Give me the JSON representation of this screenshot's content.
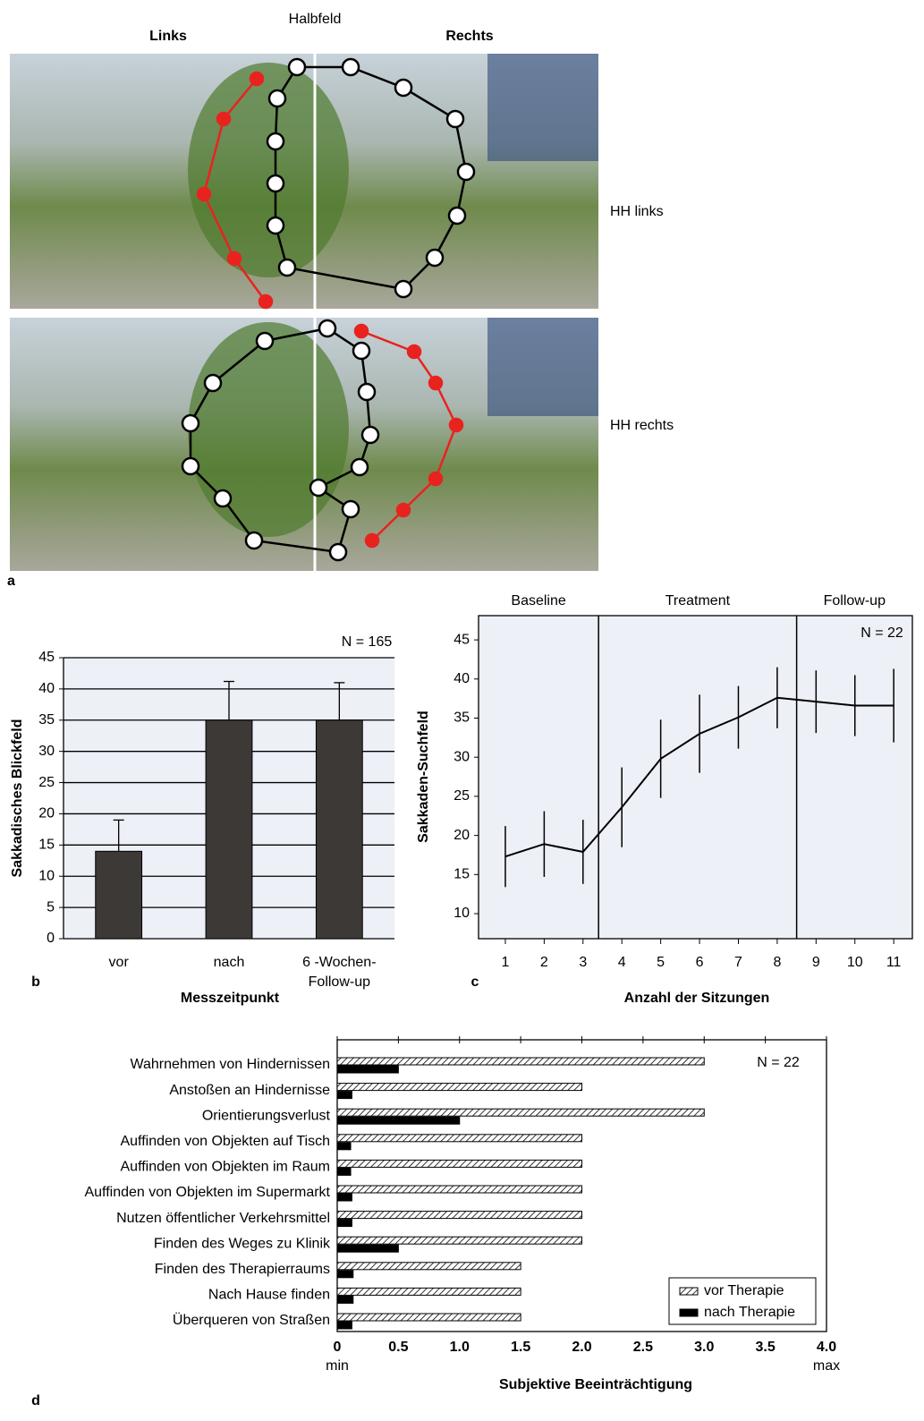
{
  "panel_a": {
    "label": "a",
    "top_labels": [
      "Links",
      "Halbfeld",
      "Rechts"
    ],
    "row_labels": [
      "HH links",
      "HH rechts"
    ]
  },
  "chart_data": [
    {
      "type": "bar",
      "panel": "b",
      "annotation": "N = 165",
      "categories": [
        "vor",
        "nach",
        "6 -Wochen-\nFollow-up"
      ],
      "values": [
        14,
        35,
        35
      ],
      "errors": [
        5,
        6.2,
        6
      ],
      "color": "#3d3936",
      "ylim": [
        0,
        45
      ],
      "yticks": [
        0,
        5,
        10,
        15,
        20,
        25,
        30,
        35,
        40,
        45
      ],
      "grid": true,
      "ylabel": "Sakkadisches Blickfeld",
      "xlabel": "Messzeitpunkt"
    },
    {
      "type": "line",
      "panel": "c",
      "annotation": "N = 22",
      "x": [
        1,
        2,
        3,
        4,
        5,
        6,
        7,
        8,
        9,
        10,
        11
      ],
      "values": [
        17.3,
        18.9,
        17.9,
        23.6,
        29.8,
        33,
        35.1,
        37.6,
        37.1,
        36.6,
        36.6
      ],
      "errors": [
        3.9,
        4.2,
        4.1,
        5.1,
        5,
        5,
        4,
        3.9,
        4,
        3.9,
        4.7
      ],
      "color": "#000000",
      "xlim": [
        0.31,
        11.48
      ],
      "xticks": [
        1,
        2,
        3,
        4,
        5,
        6,
        7,
        8,
        9,
        10,
        11
      ],
      "ylim": [
        6.8,
        48.1
      ],
      "yticks": [
        10,
        15,
        20,
        25,
        30,
        35,
        40,
        45
      ],
      "phase_labels": [
        "Baseline",
        "Treatment",
        "Follow-up"
      ],
      "phase_bounds": [
        3.4,
        8.5
      ],
      "ylabel": "Sakkaden-Suchfeld",
      "xlabel": "Anzahl der Sitzungen"
    },
    {
      "type": "hbar",
      "panel": "d",
      "annotation": "N = 22",
      "categories": [
        "Wahrnehmen von Hindernissen",
        "Anstoßen an Hindernisse",
        "Orientierungsverlust",
        "Auffinden von Objekten auf Tisch",
        "Auffinden von Objekten im Raum",
        "Auffinden von Objekten im Supermarkt",
        "Nutzen öffentlicher Verkehrsmittel",
        "Finden des Weges zu Klinik",
        "Finden des Therapierraums",
        "Nach Hause finden",
        "Überqueren von Straßen"
      ],
      "series": [
        {
          "name": "vor Therapie",
          "pattern": "hatch",
          "color": "#000000",
          "values": [
            3.0,
            2.0,
            3.0,
            2.0,
            2.0,
            2.0,
            2.0,
            2.0,
            1.5,
            1.5,
            1.5
          ]
        },
        {
          "name": "nach Therapie",
          "color": "#000000",
          "values": [
            0.5,
            0.12,
            1.0,
            0.11,
            0.11,
            0.12,
            0.12,
            0.5,
            0.13,
            0.13,
            0.12
          ]
        }
      ],
      "xlim": [
        0,
        4
      ],
      "xticks": [
        0,
        0.5,
        {
          "value": 1,
          "label": "1.0"
        },
        1.5,
        {
          "value": 2,
          "label": "2.0"
        },
        2.5,
        {
          "value": 3,
          "label": "3.0"
        },
        3.5,
        {
          "value": 4,
          "label": "4.0"
        }
      ],
      "xlim_labels": [
        "min",
        "max"
      ],
      "xlabel": "Subjektive Beeinträchtigung",
      "legend": "lower right"
    }
  ]
}
